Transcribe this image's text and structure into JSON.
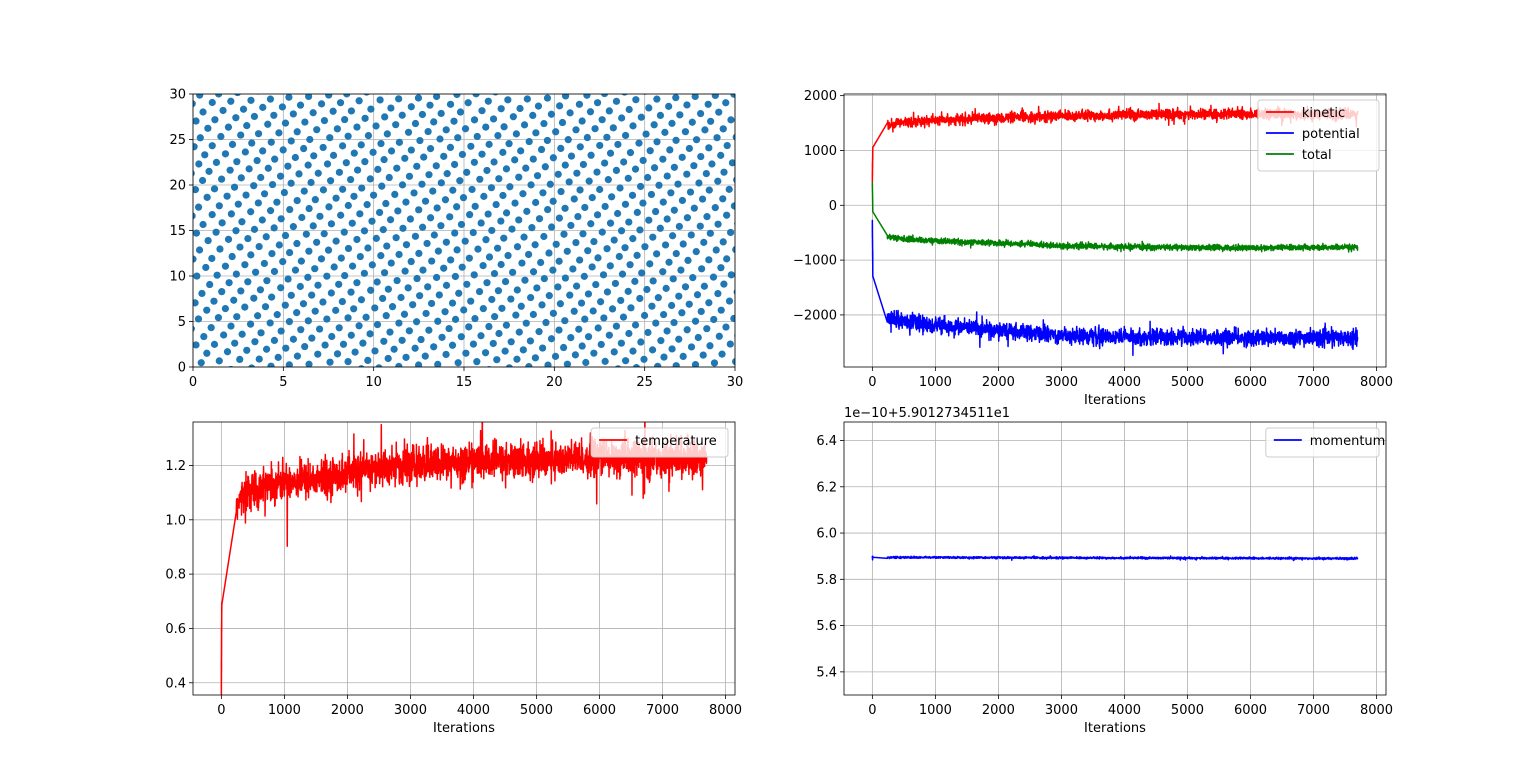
{
  "chart_data": [
    {
      "id": "positions",
      "type": "scatter",
      "title": "",
      "xlabel": "",
      "ylabel": "",
      "xlim": [
        0,
        30
      ],
      "ylim": [
        0,
        30
      ],
      "xticks": [
        0,
        5,
        10,
        15,
        20,
        25,
        30
      ],
      "yticks": [
        0,
        5,
        10,
        15,
        20,
        25,
        30
      ],
      "grid": true,
      "lattice": {
        "a": 1.087,
        "angle_deg": 7.5,
        "origin": [
          0.4,
          0.5
        ]
      },
      "marker_color": "#1f77b4"
    },
    {
      "id": "energy",
      "type": "line",
      "title": "",
      "xlabel": "Iterations",
      "ylabel": "",
      "xlim": [
        -450,
        8150
      ],
      "ylim": [
        -2950,
        2030
      ],
      "xticks": [
        0,
        1000,
        2000,
        3000,
        4000,
        5000,
        6000,
        7000,
        8000
      ],
      "yticks": [
        -2000,
        -1000,
        0,
        1000,
        2000
      ],
      "ytick_labels": [
        "−2000",
        "−1000",
        "0",
        "1000",
        "2000"
      ],
      "grid": true,
      "legend": "upper right",
      "series": [
        {
          "name": "kinetic",
          "color": "#ff0000",
          "x": [
            0,
            10,
            30,
            60,
            100,
            200,
            400,
            700,
            1000,
            1500,
            2000,
            2500,
            3000,
            4000,
            5000,
            6000,
            7000,
            7700
          ],
          "y": [
            540,
            1200,
            1300,
            1370,
            1400,
            1450,
            1500,
            1530,
            1550,
            1570,
            1590,
            1610,
            1630,
            1650,
            1660,
            1665,
            1660,
            1660
          ],
          "noise": 45
        },
        {
          "name": "potential",
          "color": "#0000ff",
          "x": [
            0,
            10,
            30,
            60,
            100,
            200,
            400,
            700,
            1000,
            1500,
            2000,
            2500,
            3000,
            4000,
            5000,
            6000,
            7000,
            7700
          ],
          "y": [
            -400,
            -1500,
            -1750,
            -1850,
            -1920,
            -2000,
            -2080,
            -2150,
            -2200,
            -2230,
            -2280,
            -2330,
            -2370,
            -2400,
            -2410,
            -2420,
            -2420,
            -2420
          ],
          "noise": 70
        },
        {
          "name": "total",
          "color": "#008000",
          "x": [
            0,
            10,
            30,
            60,
            100,
            200,
            400,
            700,
            1000,
            1500,
            2000,
            2500,
            3000,
            4000,
            5000,
            6000,
            7000,
            7700
          ],
          "y": [
            380,
            -300,
            -430,
            -490,
            -520,
            -560,
            -600,
            -630,
            -650,
            -670,
            -690,
            -710,
            -740,
            -760,
            -770,
            -775,
            -770,
            -770
          ],
          "noise": 25
        }
      ]
    },
    {
      "id": "temperature",
      "type": "line",
      "title": "",
      "xlabel": "Iterations",
      "ylabel": "",
      "xlim": [
        -450,
        8150
      ],
      "ylim": [
        0.355,
        1.36
      ],
      "xticks": [
        0,
        1000,
        2000,
        3000,
        4000,
        5000,
        6000,
        7000,
        8000
      ],
      "yticks": [
        0.4,
        0.6,
        0.8,
        1.0,
        1.2
      ],
      "ytick_labels": [
        "0.4",
        "0.6",
        "0.8",
        "1.0",
        "1.2"
      ],
      "grid": true,
      "legend": "upper right",
      "series": [
        {
          "name": "temperature",
          "color": "#ff0000",
          "x": [
            0,
            10,
            30,
            60,
            100,
            200,
            400,
            700,
            1000,
            1500,
            2000,
            2500,
            3000,
            4000,
            5000,
            6000,
            7000,
            7700
          ],
          "y": [
            0.39,
            0.85,
            0.93,
            0.96,
            0.99,
            1.04,
            1.1,
            1.13,
            1.14,
            1.15,
            1.17,
            1.19,
            1.2,
            1.215,
            1.22,
            1.225,
            1.225,
            1.23
          ],
          "noise": 0.032
        }
      ]
    },
    {
      "id": "momentum",
      "type": "line",
      "title": "",
      "xlabel": "Iterations",
      "ylabel": "",
      "offset_text": "1e−10+5.9012734511e1",
      "xlim": [
        -450,
        8150
      ],
      "ylim": [
        5.3,
        6.48
      ],
      "xticks": [
        0,
        1000,
        2000,
        3000,
        4000,
        5000,
        6000,
        7000,
        8000
      ],
      "yticks": [
        5.4,
        5.6,
        5.8,
        6.0,
        6.2,
        6.4
      ],
      "ytick_labels": [
        "5.4",
        "5.6",
        "5.8",
        "6.0",
        "6.2",
        "6.4"
      ],
      "grid": true,
      "legend": "upper right",
      "series": [
        {
          "name": "momentum",
          "color": "#0000ff",
          "x": [
            0,
            7700
          ],
          "y": [
            5.895,
            5.89
          ],
          "noise": 0.002
        }
      ]
    }
  ]
}
